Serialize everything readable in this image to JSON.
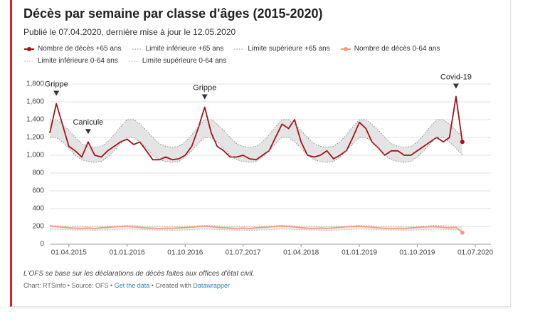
{
  "chart_data": {
    "type": "line",
    "title": "Décès par semaine par classe d'âges (2015-2020)",
    "subtitle": "Publié le 07.04.2020, dernière mise à jour le 12.05.2020",
    "note": "L'OFS se base sur les déclarations de décès faites aux offices d'état civil.",
    "credit": [
      "Chart: RTSinfo • Source: OFS • ",
      "Get the data",
      " • Created with ",
      "Datawrapper"
    ],
    "x": [
      "2015-01-01",
      "2015-02-01",
      "2015-03-01",
      "2015-04-01",
      "2015-05-01",
      "2015-06-01",
      "2015-07-01",
      "2015-08-01",
      "2015-09-01",
      "2015-10-01",
      "2015-11-01",
      "2015-12-01",
      "2016-01-01",
      "2016-02-01",
      "2016-03-01",
      "2016-04-01",
      "2016-05-01",
      "2016-06-01",
      "2016-07-01",
      "2016-08-01",
      "2016-09-01",
      "2016-10-01",
      "2016-11-01",
      "2016-12-01",
      "2017-01-01",
      "2017-02-01",
      "2017-03-01",
      "2017-04-01",
      "2017-05-01",
      "2017-06-01",
      "2017-07-01",
      "2017-08-01",
      "2017-09-01",
      "2017-10-01",
      "2017-11-01",
      "2017-12-01",
      "2018-01-01",
      "2018-02-01",
      "2018-03-01",
      "2018-04-01",
      "2018-05-01",
      "2018-06-01",
      "2018-07-01",
      "2018-08-01",
      "2018-09-01",
      "2018-10-01",
      "2018-11-01",
      "2018-12-01",
      "2019-01-01",
      "2019-02-01",
      "2019-03-01",
      "2019-04-01",
      "2019-05-01",
      "2019-06-01",
      "2019-07-01",
      "2019-08-01",
      "2019-09-01",
      "2019-10-01",
      "2019-11-01",
      "2019-12-01",
      "2020-01-01",
      "2020-02-01",
      "2020-03-01",
      "2020-04-01",
      "2020-05-01"
    ],
    "xlim": [
      "2015-01-01",
      "2020-07-01"
    ],
    "xticks": [
      {
        "value": "2015-04-01",
        "label": "01.04.2015"
      },
      {
        "value": "2016-01-01",
        "label": "01.01.2016"
      },
      {
        "value": "2016-10-01",
        "label": "01.10.2016"
      },
      {
        "value": "2017-07-01",
        "label": "01.07.2017"
      },
      {
        "value": "2018-04-01",
        "label": "01.04.2018"
      },
      {
        "value": "2019-01-01",
        "label": "01.01.2019"
      },
      {
        "value": "2019-10-01",
        "label": "01.10.2019"
      },
      {
        "value": "2020-07-01",
        "label": "01.07.2020"
      }
    ],
    "ylim": [
      0,
      1800
    ],
    "yticks": [
      0,
      200,
      400,
      600,
      800,
      {
        "value": 1000,
        "label": "1,000"
      },
      {
        "value": 1200,
        "label": "1,200"
      },
      {
        "value": 1400,
        "label": "1,400"
      },
      {
        "value": 1600,
        "label": "1,600"
      },
      {
        "value": 1800,
        "label": "1,800"
      }
    ],
    "grid": true,
    "series": [
      {
        "name": "Nombre de décès +65 ans",
        "color": "#a3121c",
        "style": "solid",
        "end_marker": true,
        "values": [
          1250,
          1580,
          1350,
          1100,
          1050,
          980,
          1150,
          1000,
          980,
          1050,
          1100,
          1150,
          1180,
          1120,
          1150,
          1050,
          950,
          950,
          980,
          950,
          960,
          1000,
          1100,
          1300,
          1540,
          1250,
          1100,
          1050,
          980,
          980,
          1000,
          960,
          950,
          1000,
          1050,
          1200,
          1350,
          1300,
          1400,
          1150,
          1000,
          980,
          1000,
          1050,
          960,
          1000,
          1050,
          1200,
          1370,
          1300,
          1150,
          1080,
          1000,
          1050,
          1050,
          1000,
          1000,
          1050,
          1100,
          1150,
          1200,
          1150,
          1200,
          1660,
          1150
        ]
      },
      {
        "name": "Limite inférieure +65 ans",
        "color": "#888888",
        "style": "dotted",
        "values": [
          1200,
          1200,
          1150,
          1080,
          1000,
          950,
          930,
          920,
          930,
          980,
          1050,
          1130,
          1200,
          1200,
          1150,
          1080,
          1000,
          950,
          930,
          920,
          930,
          980,
          1050,
          1130,
          1200,
          1200,
          1150,
          1080,
          1000,
          950,
          930,
          920,
          930,
          980,
          1050,
          1130,
          1200,
          1200,
          1150,
          1080,
          1000,
          950,
          930,
          920,
          930,
          980,
          1050,
          1130,
          1200,
          1200,
          1150,
          1080,
          1000,
          950,
          930,
          920,
          930,
          980,
          1050,
          1130,
          1200,
          1200,
          1150,
          1080,
          1000
        ]
      },
      {
        "name": "Limite supérieure +65 ans",
        "color": "#888888",
        "style": "dotted",
        "fill_to": 1,
        "fill": "#e4e4e4",
        "values": [
          1400,
          1400,
          1350,
          1280,
          1200,
          1130,
          1100,
          1090,
          1100,
          1150,
          1230,
          1320,
          1400,
          1400,
          1350,
          1280,
          1200,
          1130,
          1100,
          1090,
          1100,
          1150,
          1230,
          1320,
          1400,
          1400,
          1350,
          1280,
          1200,
          1130,
          1100,
          1090,
          1100,
          1150,
          1230,
          1320,
          1400,
          1400,
          1350,
          1280,
          1200,
          1130,
          1100,
          1090,
          1100,
          1150,
          1230,
          1320,
          1400,
          1400,
          1350,
          1280,
          1200,
          1130,
          1100,
          1090,
          1100,
          1150,
          1230,
          1320,
          1400,
          1400,
          1350,
          1280,
          1200
        ]
      },
      {
        "name": "Nombre de décès 0-64 ans",
        "color": "#f0a07a",
        "style": "solid",
        "end_marker": true,
        "values": [
          205,
          198,
          192,
          185,
          180,
          178,
          182,
          176,
          185,
          190,
          195,
          200,
          200,
          195,
          190,
          183,
          180,
          176,
          180,
          178,
          183,
          188,
          192,
          198,
          203,
          197,
          190,
          186,
          181,
          177,
          181,
          175,
          184,
          189,
          194,
          201,
          206,
          199,
          193,
          186,
          180,
          178,
          182,
          177,
          185,
          190,
          196,
          200,
          202,
          196,
          191,
          184,
          179,
          176,
          180,
          176,
          183,
          188,
          193,
          198,
          195,
          190,
          185,
          190,
          130
        ]
      },
      {
        "name": "Limite inférieure 0-64 ans",
        "color": "#aaaaaa",
        "style": "dotted",
        "values": [
          170,
          168,
          165,
          162,
          160,
          158,
          158,
          157,
          158,
          160,
          163,
          167,
          170,
          168,
          165,
          162,
          160,
          158,
          158,
          157,
          158,
          160,
          163,
          167,
          170,
          168,
          165,
          162,
          160,
          158,
          158,
          157,
          158,
          160,
          163,
          167,
          170,
          168,
          165,
          162,
          160,
          158,
          158,
          157,
          158,
          160,
          163,
          167,
          170,
          168,
          165,
          162,
          160,
          158,
          158,
          157,
          158,
          160,
          163,
          167,
          170,
          168,
          165,
          162,
          160
        ]
      },
      {
        "name": "Limite supérieure 0-64 ans",
        "color": "#aaaaaa",
        "style": "dotted",
        "fill_to": 4,
        "fill": "#ececec",
        "values": [
          212,
          210,
          207,
          204,
          200,
          198,
          198,
          197,
          198,
          200,
          204,
          208,
          212,
          210,
          207,
          204,
          200,
          198,
          198,
          197,
          198,
          200,
          204,
          208,
          212,
          210,
          207,
          204,
          200,
          198,
          198,
          197,
          198,
          200,
          204,
          208,
          212,
          210,
          207,
          204,
          200,
          198,
          198,
          197,
          198,
          200,
          204,
          208,
          212,
          210,
          207,
          204,
          200,
          198,
          198,
          197,
          198,
          200,
          204,
          208,
          212,
          210,
          207,
          204,
          200
        ]
      }
    ],
    "annotations": [
      {
        "text": "Grippe",
        "x": "2015-02-01"
      },
      {
        "text": "Canicule",
        "x": "2015-07-01"
      },
      {
        "text": "Grippe",
        "x": "2017-01-01"
      },
      {
        "text": "Covid-19",
        "x": "2020-04-01"
      }
    ]
  }
}
